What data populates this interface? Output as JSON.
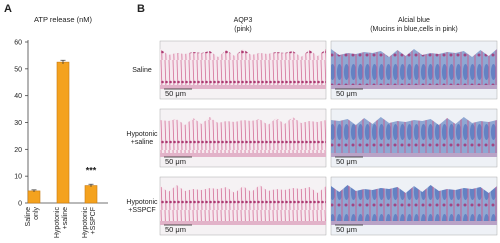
{
  "panel_labels": [
    "A",
    "B"
  ],
  "chart_data": {
    "type": "bar",
    "title": "ATP release (nM)",
    "categories": [
      "Saline only",
      "Hypotonic +saline",
      "Hypotonic +SSPCF"
    ],
    "values": [
      4.5,
      52.5,
      6.5
    ],
    "errors": [
      0.4,
      0.7,
      0.5
    ],
    "color": "#f4a21e",
    "ylim": [
      0,
      60
    ],
    "yticks": [
      0,
      10,
      20,
      30,
      40,
      50,
      60
    ],
    "annotation": "***"
  },
  "micrographs": {
    "columns": [
      {
        "title": "AQP3",
        "subtitle": "(pink)"
      },
      {
        "title": "Alcial blue",
        "subtitle": "(Mucins in blue,cells in pink)"
      }
    ],
    "rows": [
      "Saline",
      "Hypotonic +saline",
      "Hypotonic +SSPCF"
    ],
    "scale_bar": "50 μm"
  }
}
